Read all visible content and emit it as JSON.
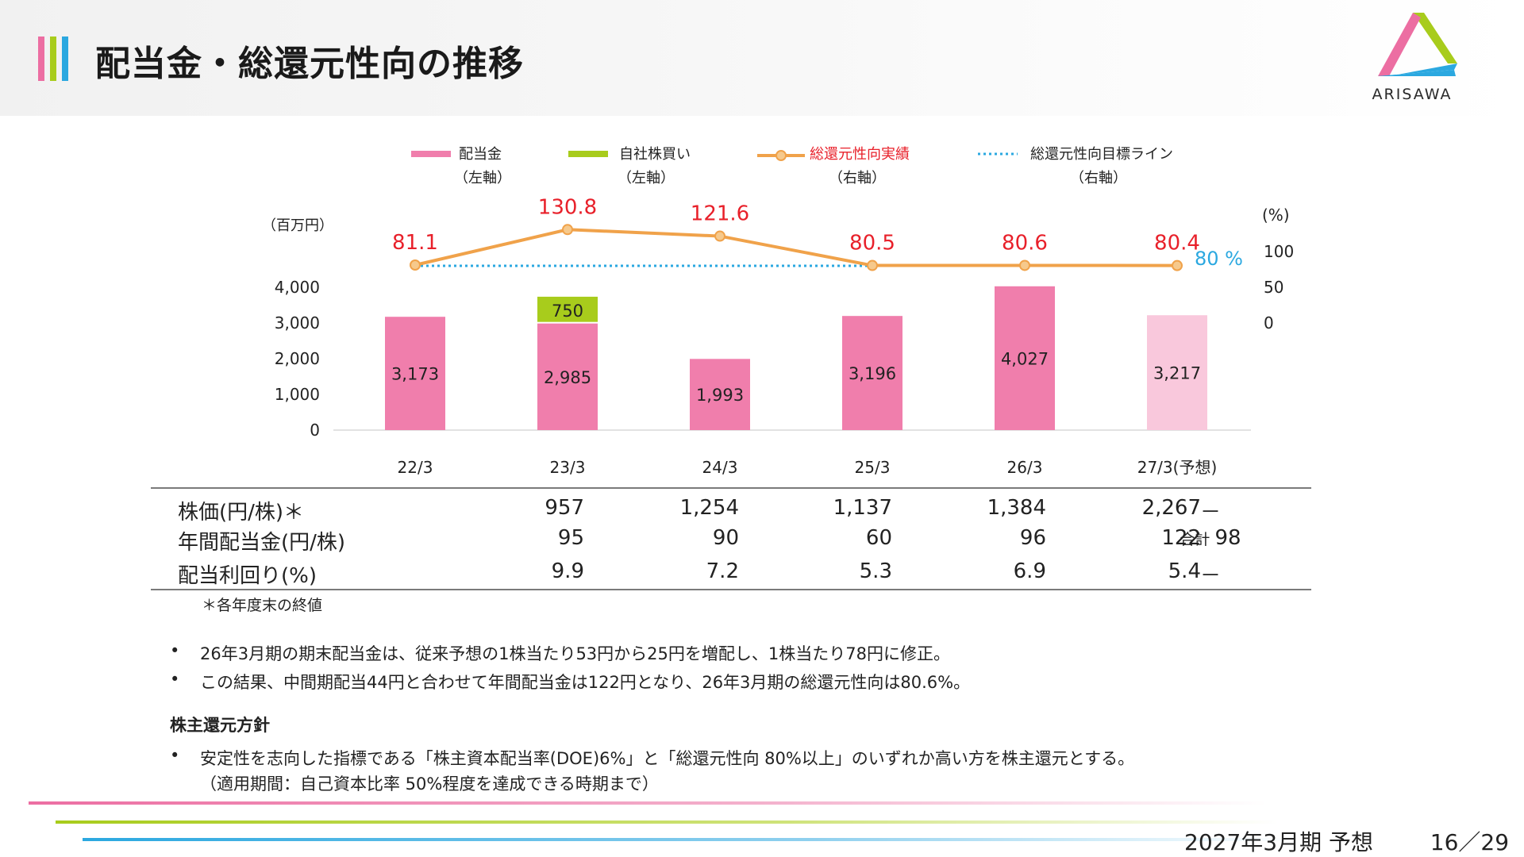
{
  "header": {
    "title": "配当金・総還元性向の推移",
    "logo_text": "ARISAWA"
  },
  "colors": {
    "dividend": "#f07eac",
    "dividend_forecast": "#f9c8dc",
    "buyback": "#a8cc1c",
    "payout": "#f0a24a",
    "target": "#2ba8e0",
    "red_label": "#e8202a",
    "blue_label": "#2ba8e0"
  },
  "legend": [
    {
      "label": "配当金",
      "sub": "（左軸）"
    },
    {
      "label": "自社株買い",
      "sub": "（左軸）"
    },
    {
      "label": "総還元性向実績",
      "sub": "（右軸）"
    },
    {
      "label": "総還元性向目標ライン",
      "sub": "（右軸）"
    }
  ],
  "chart_data": {
    "type": "bar",
    "categories": [
      "22/3",
      "23/3",
      "24/3",
      "25/3",
      "26/3",
      "27/3(予想)"
    ],
    "left_axis": {
      "unit": "（百万円）",
      "ticks": [
        "0",
        "1,000",
        "2,000",
        "3,000",
        "4,000"
      ],
      "ylim": [
        0,
        4000
      ]
    },
    "right_axis": {
      "unit": "(%)",
      "ticks": [
        "0",
        "50",
        "100"
      ]
    },
    "series": [
      {
        "name": "配当金",
        "axis": "left",
        "values": [
          3173,
          2985,
          1993,
          3196,
          4027,
          3217
        ],
        "labels": [
          "3,173",
          "2,985",
          "1,993",
          "3,196",
          "4,027",
          "3,217"
        ],
        "forecast_index": 5
      },
      {
        "name": "自社株買い",
        "axis": "left",
        "values": [
          0,
          750,
          0,
          0,
          0,
          0
        ],
        "labels": [
          "",
          "750",
          "",
          "",
          "",
          ""
        ]
      },
      {
        "name": "総還元性向実績",
        "axis": "right",
        "type": "line",
        "values": [
          81.1,
          130.8,
          121.6,
          80.5,
          80.6,
          80.4
        ],
        "labels": [
          "81.1",
          "130.8",
          "121.6",
          "80.5",
          "80.6",
          "80.4"
        ]
      },
      {
        "name": "総還元性向目標ライン",
        "axis": "right",
        "type": "dotted-line",
        "value": 80,
        "label": "80 %"
      }
    ]
  },
  "table": {
    "rows": [
      {
        "label": "株価(円/株)＊",
        "values": [
          "957",
          "1,254",
          "1,137",
          "1,384",
          "2,267",
          "－"
        ]
      },
      {
        "label": "年間配当金(円/株)",
        "values": [
          "95",
          "90",
          "60",
          "96",
          "122",
          ""
        ],
        "last_prefix": "合計",
        "last_value": "98"
      },
      {
        "label": "配当利回り(%)",
        "values": [
          "9.9",
          "7.2",
          "5.3",
          "6.9",
          "5.4",
          "－"
        ]
      }
    ],
    "note": "＊各年度末の終値"
  },
  "bullets": [
    "26年3月期の期末配当金は、従来予想の1株当たり53円から25円を増配し、1株当たり78円に修正。",
    "この結果、中間期配当44円と合わせて年間配当金は122円となり、26年3月期の総還元性向は80.6%。"
  ],
  "policy": {
    "title": "株主還元方針",
    "bullet": "安定性を志向した指標である「株主資本配当率(DOE)6%」と「総還元性向 80%以上」のいずれか高い方を株主還元とする。",
    "bullet_line2": "（適用期間：自己資本比率 50%程度を達成できる時期まで）"
  },
  "footer": {
    "period": "2027年3月期 予想",
    "page": "16／29"
  }
}
